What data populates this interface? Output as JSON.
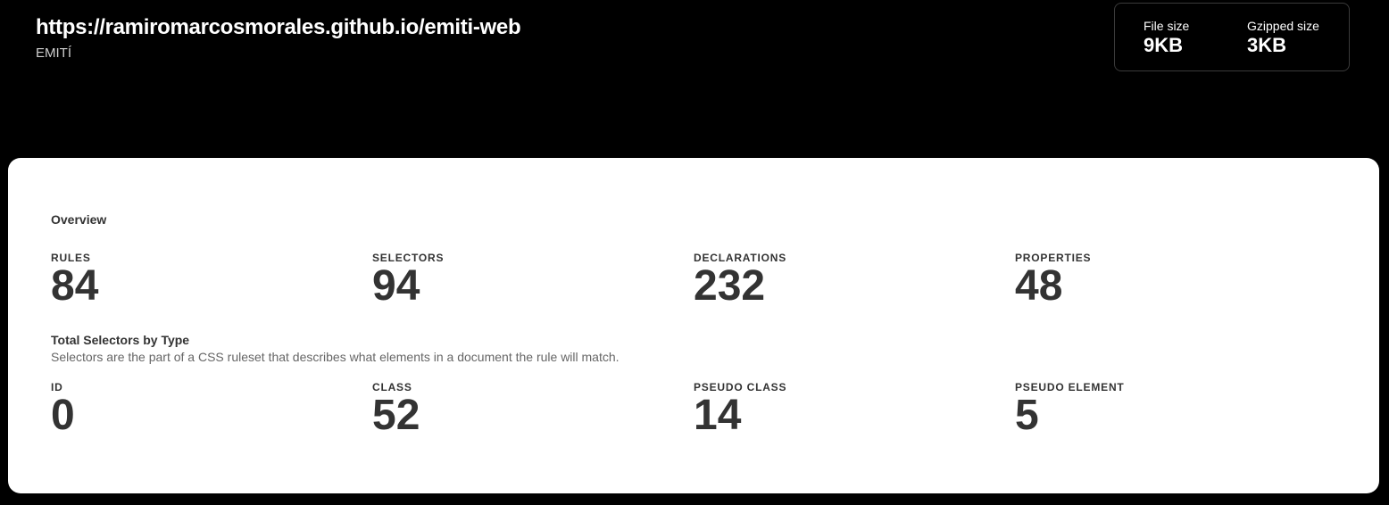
{
  "header": {
    "url": "https://ramiromarcosmorales.github.io/emiti-web",
    "site_name": "EMITÍ"
  },
  "sizes": {
    "file_label": "File size",
    "file_value": "9KB",
    "gzip_label": "Gzipped size",
    "gzip_value": "3KB"
  },
  "overview": {
    "title": "Overview",
    "stats": [
      {
        "label": "RULES",
        "value": "84"
      },
      {
        "label": "SELECTORS",
        "value": "94"
      },
      {
        "label": "DECLARATIONS",
        "value": "232"
      },
      {
        "label": "PROPERTIES",
        "value": "48"
      }
    ]
  },
  "selectors_by_type": {
    "title": "Total Selectors by Type",
    "description": "Selectors are the part of a CSS ruleset that describes what elements in a document the rule will match.",
    "stats": [
      {
        "label": "ID",
        "value": "0"
      },
      {
        "label": "CLASS",
        "value": "52"
      },
      {
        "label": "PSEUDO CLASS",
        "value": "14"
      },
      {
        "label": "PSEUDO ELEMENT",
        "value": "5"
      }
    ]
  }
}
